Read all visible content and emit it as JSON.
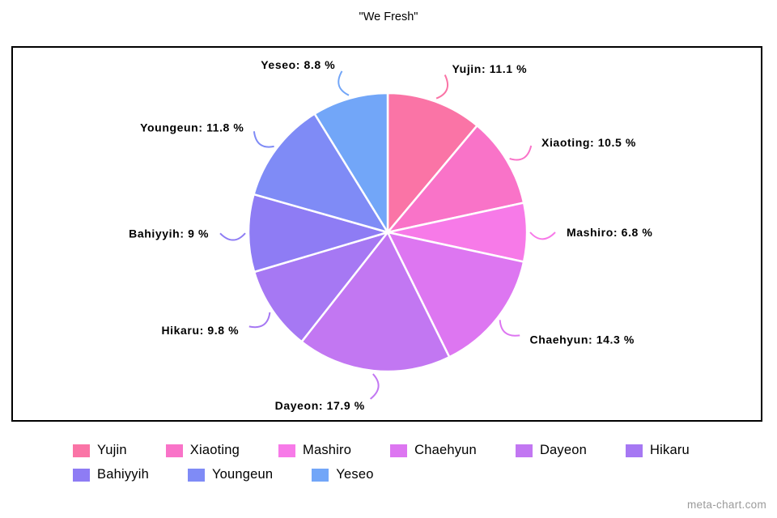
{
  "title": "\"We Fresh\"",
  "watermark": "meta-chart.com",
  "chart_data": {
    "type": "pie",
    "title": "\"We Fresh\"",
    "unit": "%",
    "start_angle_deg": 0,
    "direction": "clockwise",
    "legend_position": "bottom",
    "label_format": "{name}: {value} %",
    "categories": [
      "Yujin",
      "Xiaoting",
      "Mashiro",
      "Chaehyun",
      "Dayeon",
      "Hikaru",
      "Bahiyyih",
      "Youngeun",
      "Yeseo"
    ],
    "values": [
      11.1,
      10.5,
      6.8,
      14.3,
      17.9,
      9.8,
      9,
      11.8,
      8.8
    ],
    "colors": [
      "#fa74a6",
      "#f973c8",
      "#f77ae8",
      "#dd76f1",
      "#c277f2",
      "#a678f3",
      "#8e7cf4",
      "#7f8bf6",
      "#72a6f8"
    ]
  }
}
